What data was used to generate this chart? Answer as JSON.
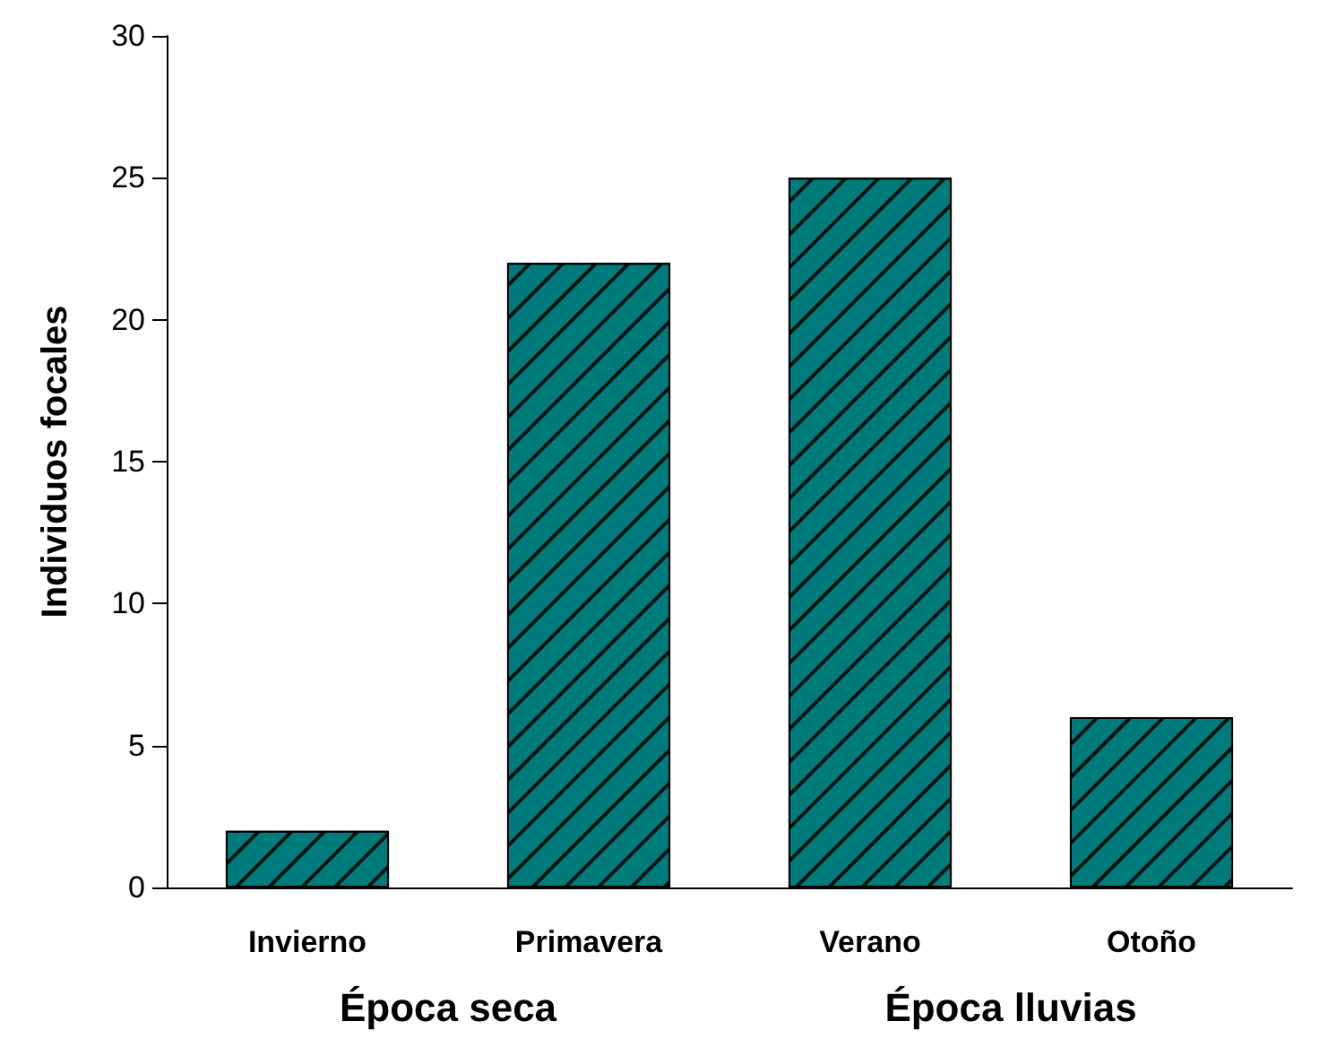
{
  "chart_data": {
    "type": "bar",
    "ylabel": "Individuos focales",
    "categories": [
      "Invierno",
      "Primavera",
      "Verano",
      "Otoño"
    ],
    "values": [
      2,
      22,
      25,
      6
    ],
    "color": "#007b7b",
    "ylim": [
      0,
      30
    ],
    "yticks": [
      0,
      5,
      10,
      15,
      20,
      25,
      30
    ],
    "annotations": [
      "Época seca",
      "Época lluvias"
    ]
  }
}
